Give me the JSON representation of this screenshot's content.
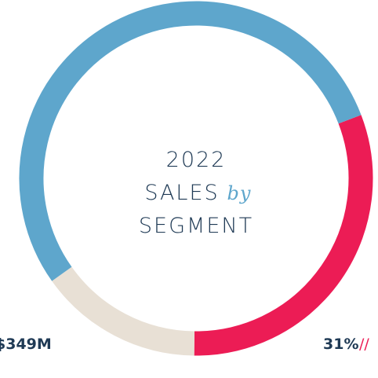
{
  "chart_data": {
    "type": "donut",
    "title_lines": [
      "2022",
      "SALES",
      "by",
      "SEGMENT"
    ],
    "values": [
      31,
      15,
      54
    ],
    "value_labels": [
      "31%",
      null,
      null
    ],
    "colors": [
      "#ec1c55",
      "#e8e0d5",
      "#5ea6cc"
    ],
    "annotations": [
      "$349M",
      "//"
    ]
  }
}
